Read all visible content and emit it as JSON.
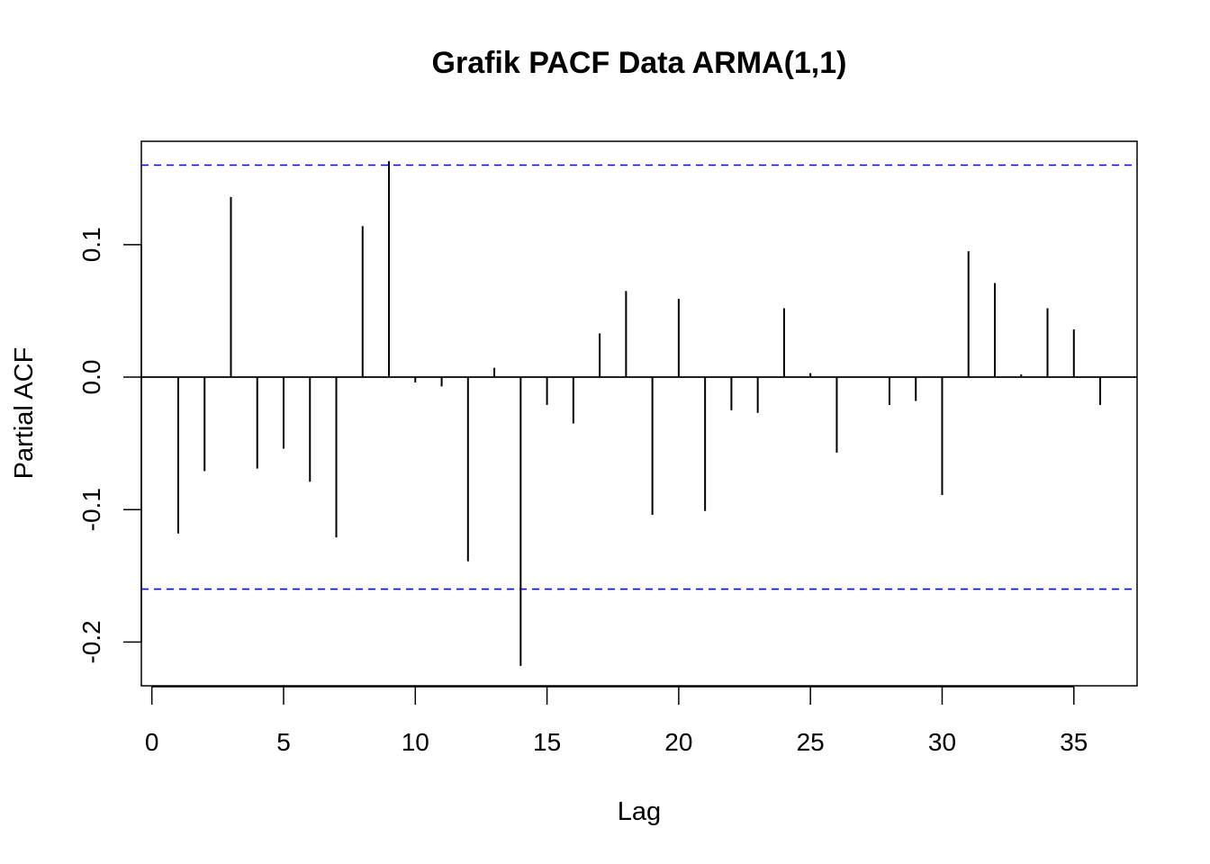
{
  "chart_data": {
    "type": "bar",
    "title": "Grafik PACF Data ARMA(1,1)",
    "xlabel": "Lag",
    "ylabel": "Partial ACF",
    "xlim": [
      -0.4,
      37.4
    ],
    "ylim": [
      -0.233,
      0.178
    ],
    "x_ticks": [
      0,
      5,
      10,
      15,
      20,
      25,
      30,
      35
    ],
    "y_ticks": [
      -0.2,
      -0.1,
      0.0,
      0.1
    ],
    "y_tick_labels": [
      "-0.2",
      "-0.1",
      "0.0",
      "0.1"
    ],
    "confidence_bound": 0.16,
    "colors": {
      "bars": "#000000",
      "bounds": "#0000ff",
      "zero_line": "#000000"
    },
    "lags": [
      1,
      2,
      3,
      4,
      5,
      6,
      7,
      8,
      9,
      10,
      11,
      12,
      13,
      14,
      15,
      16,
      17,
      18,
      19,
      20,
      21,
      22,
      23,
      24,
      25,
      26,
      27,
      28,
      29,
      30,
      31,
      32,
      33,
      34,
      35,
      36
    ],
    "values": [
      -0.118,
      -0.071,
      0.136,
      -0.069,
      -0.054,
      -0.079,
      -0.121,
      0.114,
      0.163,
      -0.004,
      -0.007,
      -0.139,
      0.007,
      -0.218,
      -0.021,
      -0.035,
      0.033,
      0.065,
      -0.104,
      0.059,
      -0.101,
      -0.025,
      -0.027,
      0.052,
      0.003,
      -0.057,
      0.0,
      -0.021,
      -0.018,
      -0.089,
      0.095,
      0.071,
      0.002,
      0.052,
      0.036,
      -0.021
    ]
  }
}
